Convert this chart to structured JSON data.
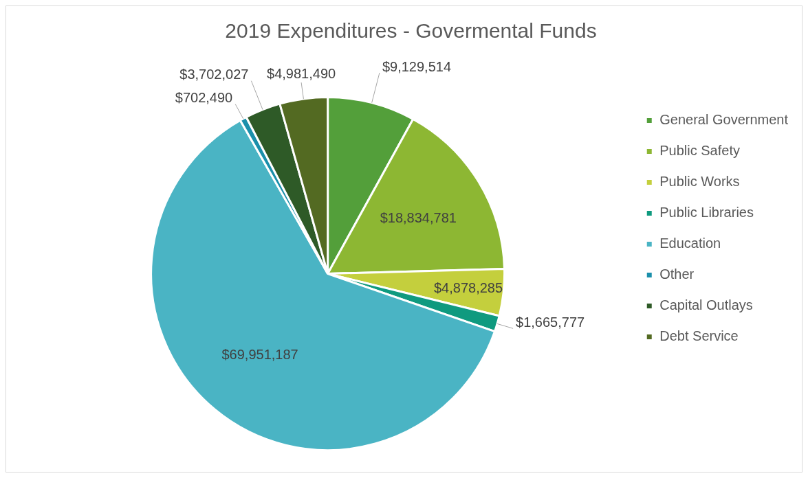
{
  "chart_data": {
    "type": "pie",
    "title": "2019 Expenditures - Govermental Funds",
    "categories": [
      "General Government",
      "Public Safety",
      "Public Works",
      "Public Libraries",
      "Education",
      "Other",
      "Capital Outlays",
      "Debt Service"
    ],
    "values": [
      9129514,
      18834781,
      4878285,
      1665777,
      69951187,
      702490,
      3702027,
      4981490
    ],
    "value_labels": [
      "$9,129,514",
      "$18,834,781",
      "$4,878,285",
      "$1,665,777",
      "$69,951,187",
      "$702,490",
      "$3,702,027",
      "$4,981,490"
    ],
    "colors": [
      "#539f3a",
      "#8db733",
      "#c4cf3d",
      "#0f9a7f",
      "#4ab4c4",
      "#1b8fab",
      "#2e5a27",
      "#536a22"
    ],
    "legend": "right"
  }
}
